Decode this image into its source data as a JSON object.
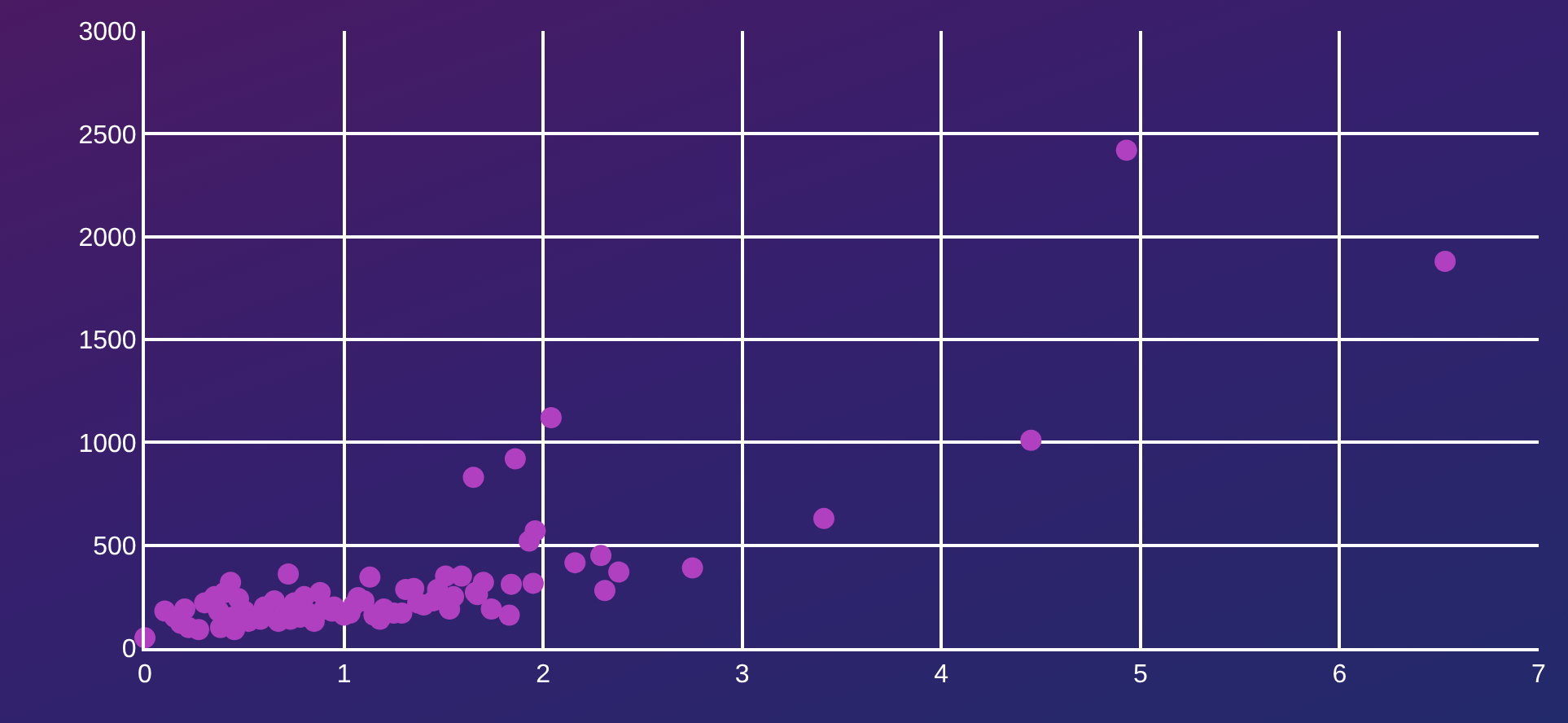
{
  "chart_data": {
    "type": "scatter",
    "marker": "circle",
    "grid": true,
    "xlim": [
      0,
      7
    ],
    "ylim": [
      0,
      3000
    ],
    "xticks": [
      0,
      1,
      2,
      3,
      4,
      5,
      6,
      7
    ],
    "yticks": [
      0,
      500,
      1000,
      1500,
      2000,
      2500,
      3000
    ],
    "series": [
      {
        "color": "#b040c0",
        "x": [
          0,
          0.1,
          0.15,
          0.18,
          0.2,
          0.22,
          0.27,
          0.3,
          0.35,
          0.37,
          0.38,
          0.4,
          0.43,
          0.44,
          0.45,
          0.47,
          0.5,
          0.52,
          0.58,
          0.6,
          0.65,
          0.67,
          0.7,
          0.72,
          0.73,
          0.75,
          0.78,
          0.8,
          0.82,
          0.85,
          0.88,
          0.9,
          0.94,
          0.95,
          1.0,
          1.03,
          1.05,
          1.07,
          1.1,
          1.13,
          1.15,
          1.18,
          1.2,
          1.25,
          1.29,
          1.31,
          1.35,
          1.37,
          1.4,
          1.45,
          1.47,
          1.51,
          1.53,
          1.55,
          1.59,
          1.65,
          1.66,
          1.67,
          1.7,
          1.74,
          1.83,
          1.84,
          1.86,
          1.93,
          1.95,
          1.96,
          2.04,
          2.16,
          2.29,
          2.31,
          2.38,
          2.75,
          3.41,
          4.45,
          4.93,
          6.53
        ],
        "values": [
          50,
          180,
          150,
          120,
          190,
          100,
          90,
          220,
          250,
          180,
          100,
          270,
          320,
          150,
          90,
          240,
          180,
          130,
          140,
          200,
          230,
          130,
          180,
          360,
          140,
          220,
          150,
          250,
          170,
          130,
          270,
          190,
          180,
          200,
          160,
          170,
          210,
          245,
          230,
          345,
          160,
          140,
          190,
          170,
          170,
          285,
          290,
          220,
          210,
          230,
          285,
          350,
          190,
          250,
          350,
          830,
          270,
          260,
          320,
          190,
          160,
          310,
          920,
          520,
          315,
          570,
          1120,
          415,
          450,
          280,
          370,
          390,
          630,
          1010,
          2420,
          1880
        ]
      }
    ]
  }
}
